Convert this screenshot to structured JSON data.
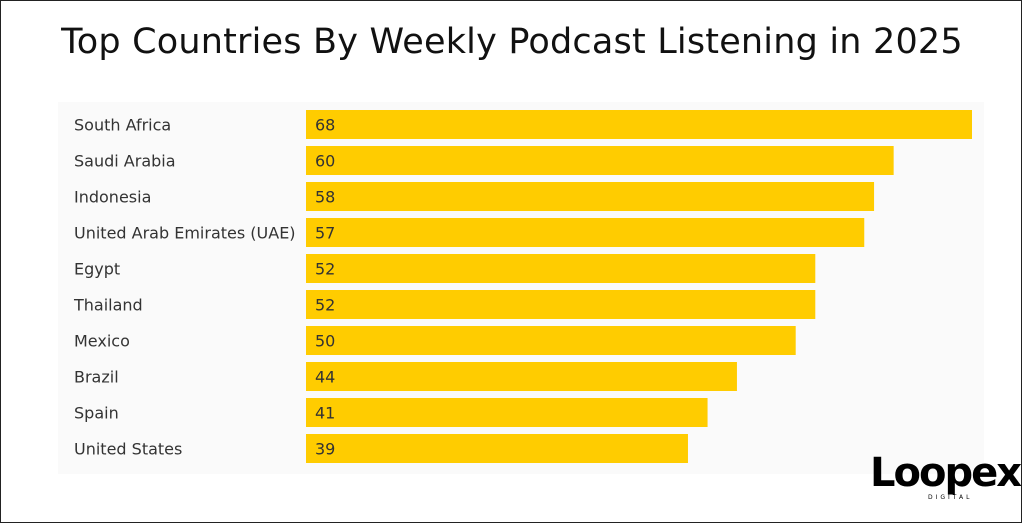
{
  "chart_data": {
    "type": "bar",
    "orientation": "horizontal",
    "title": "Top Countries By Weekly Podcast Listening in 2025",
    "categories": [
      "South Africa",
      "Saudi Arabia",
      "Indonesia",
      "United Arab Emirates (UAE)",
      "Egypt",
      "Thailand",
      "Mexico",
      "Brazil",
      "Spain",
      "United States"
    ],
    "values": [
      68,
      60,
      58,
      57,
      52,
      52,
      50,
      44,
      41,
      39
    ],
    "xlim": [
      0,
      68
    ],
    "bar_color": "#FFCC00",
    "data_labels": "inside-left",
    "grid": false
  },
  "logo": {
    "text": "Loopex",
    "subtext": "DIGITAL"
  }
}
